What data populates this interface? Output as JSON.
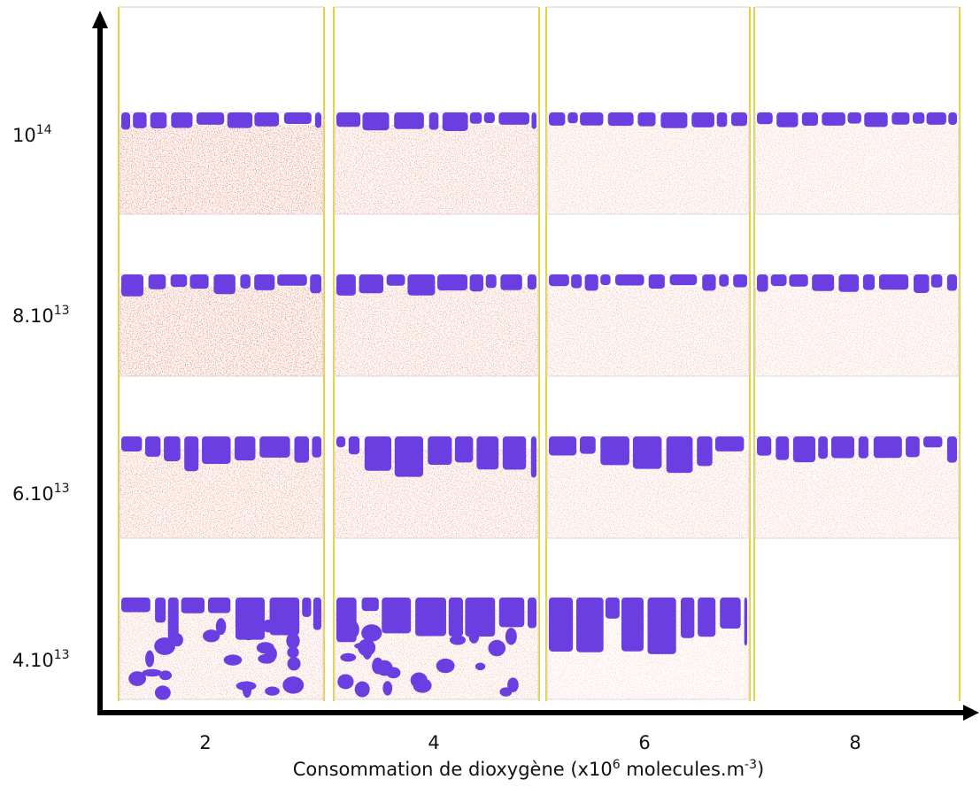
{
  "y_labels": [
    {
      "base": "10",
      "exponent": "14"
    },
    {
      "base": "8.10",
      "exponent": "13"
    },
    {
      "base": "6.10",
      "exponent": "13"
    },
    {
      "base": "4.10",
      "exponent": "13"
    }
  ],
  "x_labels": [
    "2",
    "4",
    "6",
    "8"
  ],
  "x_axis_title": {
    "text": "Consommation de dioxygène (x10",
    "exponent": "6",
    "text2": " molecules.m",
    "exponent2": "-3",
    "end": ")"
  }
}
